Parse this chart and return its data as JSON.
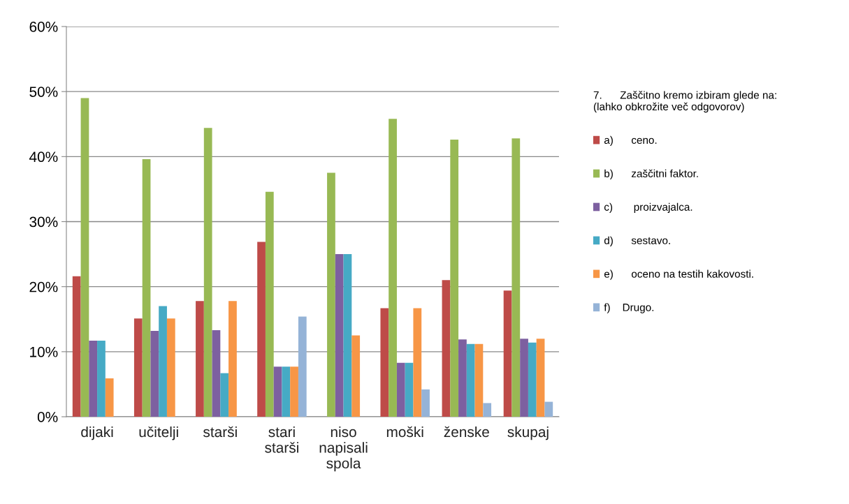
{
  "chart_data": {
    "type": "bar",
    "categories": [
      "dijaki",
      "učitelji",
      "starši",
      "stari\nstarši",
      "niso\nnapisali\nspola",
      "moški",
      "ženske",
      "skupaj"
    ],
    "legend_title": "7.      Zaščitno kremo izbiram glede na:\n(lahko obkrožite več odgovorov)",
    "series": [
      {
        "name": "a)      ceno.",
        "color": "#be4b48",
        "values": [
          21.6,
          15.1,
          17.8,
          26.9,
          0,
          16.7,
          21.0,
          19.4
        ]
      },
      {
        "name": "b)      zaščitni faktor.",
        "color": "#98b954",
        "values": [
          49.0,
          39.6,
          44.4,
          34.6,
          37.5,
          45.8,
          42.6,
          42.8
        ]
      },
      {
        "name": "c)       proizvajalca.",
        "color": "#7d60a0",
        "values": [
          11.7,
          13.2,
          13.3,
          7.7,
          25.0,
          8.3,
          11.9,
          12.0
        ]
      },
      {
        "name": "d)      sestavo.",
        "color": "#46aac5",
        "values": [
          11.7,
          17.0,
          6.7,
          7.7,
          25.0,
          8.3,
          11.2,
          11.4
        ]
      },
      {
        "name": "e)      oceno na testih kakovosti.",
        "color": "#f79646",
        "values": [
          5.9,
          15.1,
          17.8,
          7.7,
          12.5,
          16.7,
          11.2,
          12.0
        ]
      },
      {
        "name": "f)    Drugo.",
        "color": "#95b3d7",
        "values": [
          0,
          0,
          0,
          15.4,
          0,
          4.2,
          2.1,
          2.3
        ]
      }
    ],
    "ylim": [
      0,
      60
    ],
    "yticks": [
      {
        "value": 0,
        "label": "0%"
      },
      {
        "value": 10,
        "label": "10%"
      },
      {
        "value": 20,
        "label": "20%"
      },
      {
        "value": 30,
        "label": "30%"
      },
      {
        "value": 40,
        "label": "40%"
      },
      {
        "value": 50,
        "label": "50%"
      },
      {
        "value": 60,
        "label": "60%"
      }
    ],
    "grid": "y",
    "legend": "right"
  }
}
